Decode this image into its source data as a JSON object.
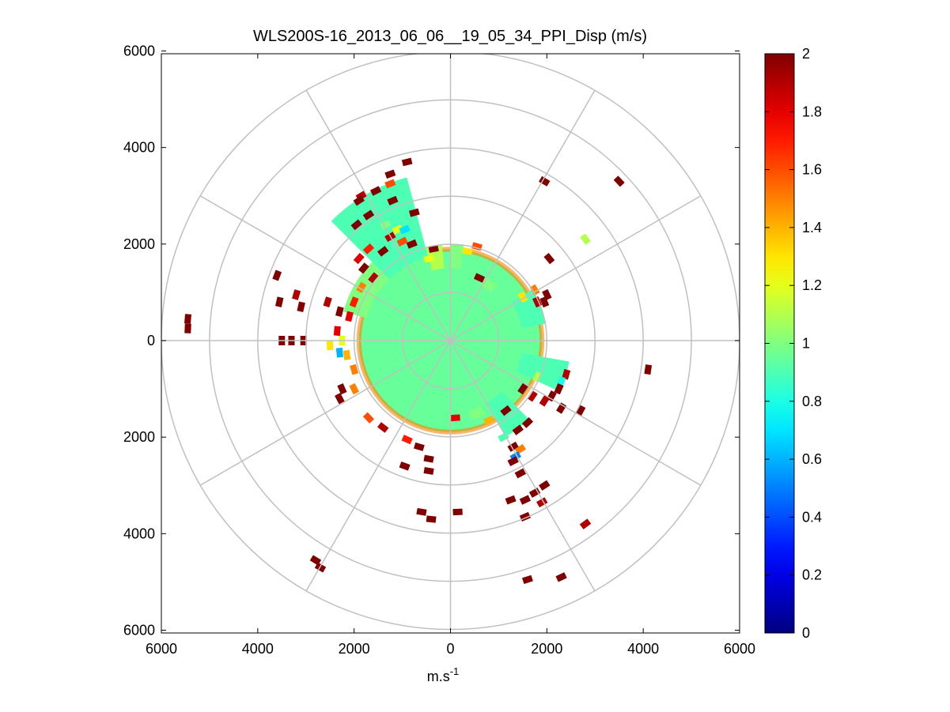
{
  "chart_data": {
    "type": "polar-ppi",
    "title": "WLS200S-16_2013_06_06__19_05_34_PPI_Disp (m/s)",
    "xlabel": "m.s",
    "xlabel_superscript": "-1",
    "xlim": [
      -6000,
      6000
    ],
    "ylim": [
      -6000,
      6000
    ],
    "x_ticks": [
      -6000,
      -4000,
      -2000,
      0,
      2000,
      4000,
      6000
    ],
    "x_tick_labels": [
      "6000",
      "4000",
      "2000",
      "0",
      "2000",
      "4000",
      "6000"
    ],
    "y_ticks": [
      6000,
      4000,
      2000,
      0,
      -2000,
      -4000,
      -6000
    ],
    "y_tick_labels": [
      "6000",
      "4000",
      "2000",
      "0",
      "2000",
      "4000",
      "6000"
    ],
    "range_rings": [
      1000,
      2000,
      3000,
      4000,
      5000,
      6000
    ],
    "spoke_angles_deg": [
      0,
      30,
      60,
      90,
      120,
      150,
      180,
      210,
      240,
      270,
      300,
      330
    ],
    "grid": true,
    "colorbar": {
      "min": 0,
      "max": 2,
      "ticks": [
        0,
        0.2,
        0.4,
        0.6,
        0.8,
        1,
        1.2,
        1.4,
        1.6,
        1.8,
        2
      ],
      "tick_labels": [
        "0",
        "0.2",
        "0.4",
        "0.6",
        "0.8",
        "1",
        "1.2",
        "1.4",
        "1.6",
        "1.8",
        "2"
      ],
      "colormap": "jet"
    },
    "core_field": {
      "value": 0.95,
      "max_range": 1900
    },
    "sectors": [
      {
        "az_start": -15,
        "az_end": -5,
        "r_start": 1500,
        "r_end": 2000,
        "value": 1.1
      },
      {
        "az_start": -45,
        "az_end": -15,
        "r_start": 1800,
        "r_end": 3500,
        "value": 0.9
      },
      {
        "az_start": -75,
        "az_end": -45,
        "r_start": 1800,
        "r_end": 2300,
        "value": 1.0
      },
      {
        "az_start": 0,
        "az_end": 8,
        "r_start": 1500,
        "r_end": 2000,
        "value": 1.0
      },
      {
        "az_start": 28,
        "az_end": 40,
        "r_start": 1300,
        "r_end": 1500,
        "value": 1.0
      },
      {
        "az_start": 58,
        "az_end": 80,
        "r_start": 1500,
        "r_end": 2000,
        "value": 0.9
      },
      {
        "az_start": 100,
        "az_end": 115,
        "r_start": 1500,
        "r_end": 2500,
        "value": 0.9
      },
      {
        "az_start": 135,
        "az_end": 150,
        "r_start": 1500,
        "r_end": 2300,
        "value": 0.9
      },
      {
        "az_start": 155,
        "az_end": 165,
        "r_start": 1500,
        "r_end": 1700,
        "value": 1.0
      }
    ],
    "echoes": [
      {
        "x": -1250,
        "y": 3450,
        "v": 2.0
      },
      {
        "x": -1550,
        "y": 3100,
        "v": 2.0
      },
      {
        "x": -1200,
        "y": 2900,
        "v": 2.0
      },
      {
        "x": -900,
        "y": 3700,
        "v": 2.0
      },
      {
        "x": -750,
        "y": 2650,
        "v": 2.0
      },
      {
        "x": -1850,
        "y": 3000,
        "v": 1.9
      },
      {
        "x": -1700,
        "y": 2600,
        "v": 2.0
      },
      {
        "x": -1950,
        "y": 2400,
        "v": 2.0
      },
      {
        "x": -1900,
        "y": 1700,
        "v": 1.8
      },
      {
        "x": -1800,
        "y": 1500,
        "v": 2.0
      },
      {
        "x": -1600,
        "y": 1300,
        "v": 1.9
      },
      {
        "x": -1700,
        "y": 1900,
        "v": 1.7
      },
      {
        "x": -1850,
        "y": 1100,
        "v": 1.5
      },
      {
        "x": -2000,
        "y": 800,
        "v": 1.7
      },
      {
        "x": -2100,
        "y": 500,
        "v": 1.8
      },
      {
        "x": -2300,
        "y": 600,
        "v": 2.0
      },
      {
        "x": -2550,
        "y": 800,
        "v": 1.9
      },
      {
        "x": -2350,
        "y": 200,
        "v": 1.8
      },
      {
        "x": -2250,
        "y": 0,
        "v": 1.2
      },
      {
        "x": -2500,
        "y": -100,
        "v": 1.3
      },
      {
        "x": -2000,
        "y": -1000,
        "v": 1.5
      },
      {
        "x": -2300,
        "y": -1200,
        "v": 2.0
      },
      {
        "x": -2250,
        "y": -1000,
        "v": 2.0
      },
      {
        "x": -1700,
        "y": -1600,
        "v": 1.6
      },
      {
        "x": -1400,
        "y": -1800,
        "v": 1.9
      },
      {
        "x": -950,
        "y": -2600,
        "v": 2.0
      },
      {
        "x": -450,
        "y": -2700,
        "v": 2.0
      },
      {
        "x": -450,
        "y": -2450,
        "v": 2.0
      },
      {
        "x": -650,
        "y": -2200,
        "v": 2.0
      },
      {
        "x": -3600,
        "y": 1350,
        "v": 2.0
      },
      {
        "x": -3550,
        "y": 800,
        "v": 2.0
      },
      {
        "x": -3200,
        "y": 950,
        "v": 1.9
      },
      {
        "x": -3100,
        "y": 700,
        "v": 2.0
      },
      {
        "x": -5450,
        "y": 450,
        "v": 2.0
      },
      {
        "x": -5450,
        "y": 250,
        "v": 2.0
      },
      {
        "x": -3500,
        "y": 0,
        "v": 2.0
      },
      {
        "x": -3300,
        "y": 0,
        "v": 2.0
      },
      {
        "x": -3050,
        "y": 0,
        "v": 2.0
      },
      {
        "x": -1350,
        "y": 2400,
        "v": 1.0
      },
      {
        "x": -1100,
        "y": 2300,
        "v": 1.2
      },
      {
        "x": -950,
        "y": 2300,
        "v": 0.7
      },
      {
        "x": -800,
        "y": 2000,
        "v": 2.0
      },
      {
        "x": -450,
        "y": 1700,
        "v": 1.2
      },
      {
        "x": -350,
        "y": 1900,
        "v": 2.0
      },
      {
        "x": 550,
        "y": 1950,
        "v": 1.6
      },
      {
        "x": 350,
        "y": 1850,
        "v": 1.3
      },
      {
        "x": 600,
        "y": 1300,
        "v": 2.0
      },
      {
        "x": 1500,
        "y": 900,
        "v": 1.3
      },
      {
        "x": 1800,
        "y": 800,
        "v": 1.9
      },
      {
        "x": 1950,
        "y": 800,
        "v": 2.0
      },
      {
        "x": 1750,
        "y": 1050,
        "v": 1.5
      },
      {
        "x": 2000,
        "y": 950,
        "v": 2.0
      },
      {
        "x": 2400,
        "y": -700,
        "v": 1.9
      },
      {
        "x": 2300,
        "y": -850,
        "v": 0.8
      },
      {
        "x": 2250,
        "y": -1000,
        "v": 2.0
      },
      {
        "x": 2100,
        "y": -1150,
        "v": 2.0
      },
      {
        "x": 2300,
        "y": -1400,
        "v": 2.0
      },
      {
        "x": 1950,
        "y": -1250,
        "v": 1.9
      },
      {
        "x": 1800,
        "y": -750,
        "v": 1.1
      },
      {
        "x": 1600,
        "y": -1700,
        "v": 2.0
      },
      {
        "x": 1400,
        "y": -1850,
        "v": 2.0
      },
      {
        "x": 1300,
        "y": -2200,
        "v": 2.0
      },
      {
        "x": 1450,
        "y": -2250,
        "v": 1.5
      },
      {
        "x": 1350,
        "y": -2400,
        "v": 0.5
      },
      {
        "x": 1100,
        "y": -2000,
        "v": 0.9
      },
      {
        "x": 1300,
        "y": -2500,
        "v": 2.0
      },
      {
        "x": 1450,
        "y": -2750,
        "v": 2.0
      },
      {
        "x": 1950,
        "y": -3000,
        "v": 2.0
      },
      {
        "x": 1750,
        "y": -3150,
        "v": 2.0
      },
      {
        "x": 1550,
        "y": -3300,
        "v": 2.0
      },
      {
        "x": 1900,
        "y": -3350,
        "v": 1.9
      },
      {
        "x": 1250,
        "y": -3300,
        "v": 2.0
      },
      {
        "x": 1550,
        "y": -3650,
        "v": 2.0
      },
      {
        "x": 1950,
        "y": 3300,
        "v": 2.0
      },
      {
        "x": 3500,
        "y": 3300,
        "v": 2.0
      },
      {
        "x": 2800,
        "y": 2100,
        "v": 1.1
      },
      {
        "x": 2050,
        "y": 1700,
        "v": 2.0
      },
      {
        "x": 4100,
        "y": -600,
        "v": 2.0
      },
      {
        "x": 2700,
        "y": -1450,
        "v": 2.0
      },
      {
        "x": 2800,
        "y": -3800,
        "v": 1.9
      },
      {
        "x": 1600,
        "y": -4950,
        "v": 2.0
      },
      {
        "x": -2700,
        "y": -4700,
        "v": 2.0
      },
      {
        "x": -600,
        "y": -3550,
        "v": 2.0
      },
      {
        "x": -400,
        "y": -3700,
        "v": 2.0
      },
      {
        "x": 150,
        "y": -3550,
        "v": 2.0
      },
      {
        "x": -2800,
        "y": -4550,
        "v": 2.0
      },
      {
        "x": 2300,
        "y": -4900,
        "v": 2.0
      },
      {
        "x": -1000,
        "y": 2050,
        "v": 1.6
      },
      {
        "x": -1250,
        "y": 2150,
        "v": 1.9
      },
      {
        "x": -1400,
        "y": 1850,
        "v": 2.0
      },
      {
        "x": -1900,
        "y": 2900,
        "v": 2.0
      },
      {
        "x": -1050,
        "y": 3250,
        "v": 0.9
      },
      {
        "x": -1250,
        "y": 3250,
        "v": 1.6
      },
      {
        "x": -2150,
        "y": -300,
        "v": 1.4
      },
      {
        "x": -2300,
        "y": -250,
        "v": 0.6
      },
      {
        "x": -2000,
        "y": -600,
        "v": 1.5
      },
      {
        "x": -900,
        "y": -2050,
        "v": 1.7
      },
      {
        "x": 100,
        "y": -1600,
        "v": 1.8
      },
      {
        "x": 800,
        "y": -1650,
        "v": 1.4
      },
      {
        "x": 1500,
        "y": -1000,
        "v": 2.0
      },
      {
        "x": 1700,
        "y": -1150,
        "v": 1.9
      },
      {
        "x": 1150,
        "y": -1450,
        "v": 2.0
      }
    ]
  }
}
